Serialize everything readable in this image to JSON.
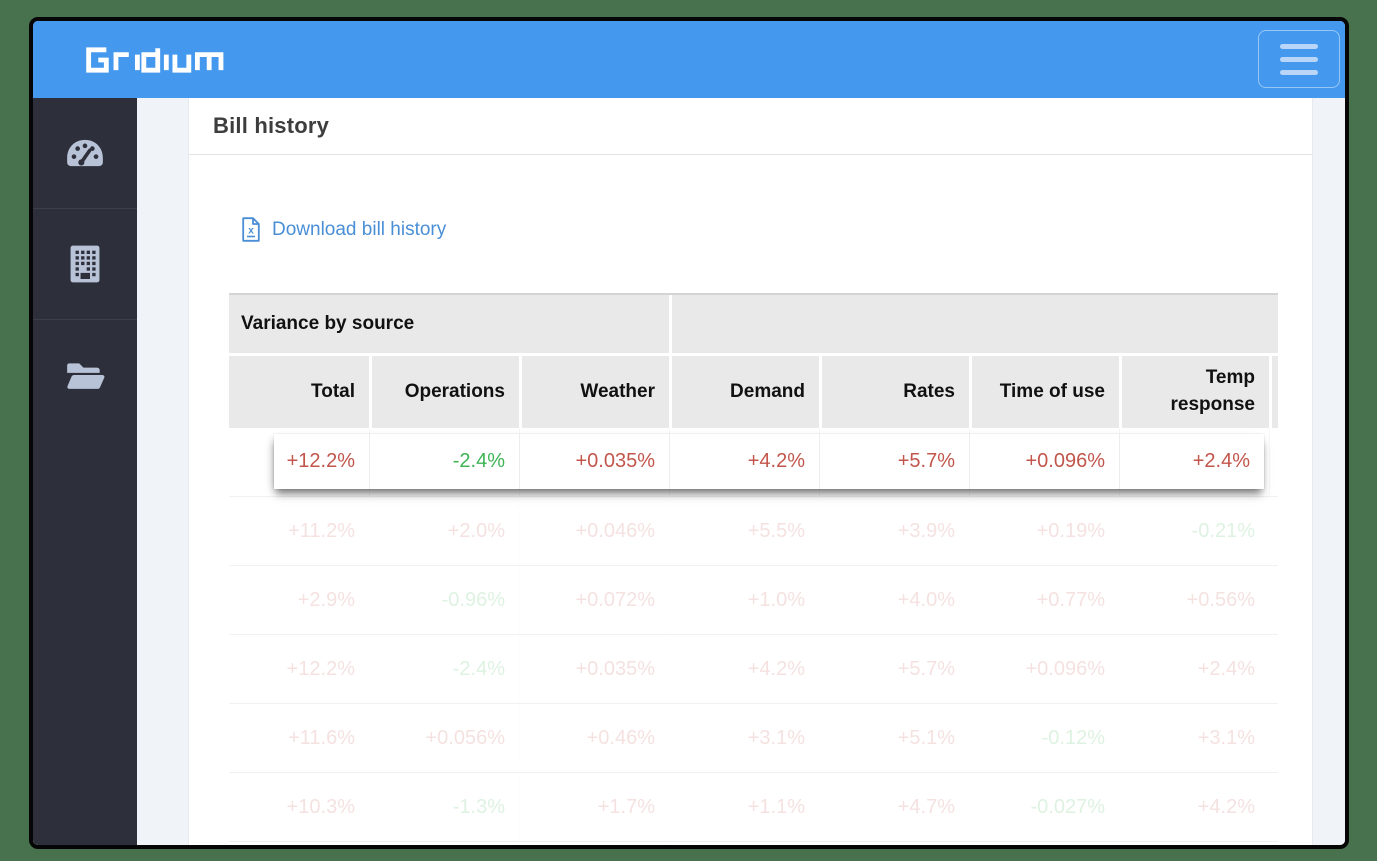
{
  "brand": {
    "name": "Gridium"
  },
  "header": {
    "menu_icon": "hamburger-icon"
  },
  "sidebar": {
    "items": [
      {
        "icon": "gauge-icon"
      },
      {
        "icon": "building-icon"
      },
      {
        "icon": "folder-open-icon"
      }
    ]
  },
  "page": {
    "title": "Bill history"
  },
  "download": {
    "label": "Download bill history",
    "icon": "excel-file-icon"
  },
  "table": {
    "group_header": "Variance by source",
    "columns": [
      "Total",
      "Operations",
      "Weather",
      "Demand",
      "Rates",
      "Time of use",
      "Temp response"
    ],
    "highlighted_row": [
      "+12.2%",
      "-2.4%",
      "+0.035%",
      "+4.2%",
      "+5.7%",
      "+0.096%",
      "+2.4%"
    ],
    "faded_rows": [
      [
        "+11.2%",
        "+2.0%",
        "+0.046%",
        "+5.5%",
        "+3.9%",
        "+0.19%",
        "-0.21%"
      ],
      [
        "+2.9%",
        "-0.96%",
        "+0.072%",
        "+1.0%",
        "+4.0%",
        "+0.77%",
        "+0.56%"
      ],
      [
        "+12.2%",
        "-2.4%",
        "+0.035%",
        "+4.2%",
        "+5.7%",
        "+0.096%",
        "+2.4%"
      ],
      [
        "+11.6%",
        "+0.056%",
        "+0.46%",
        "+3.1%",
        "+5.1%",
        "-0.12%",
        "+3.1%"
      ],
      [
        "+10.3%",
        "-1.3%",
        "+1.7%",
        "+1.1%",
        "+4.7%",
        "-0.027%",
        "+4.2%"
      ]
    ]
  },
  "colors": {
    "positive_red": "#c2564c",
    "negative_green": "#3eb455",
    "header_blue": "#4499ee",
    "link_blue": "#4a8fd6",
    "sidebar_dark": "#2d2f3a",
    "desktop_green": "#48724e",
    "table_header_grey": "#e9e9e9"
  }
}
